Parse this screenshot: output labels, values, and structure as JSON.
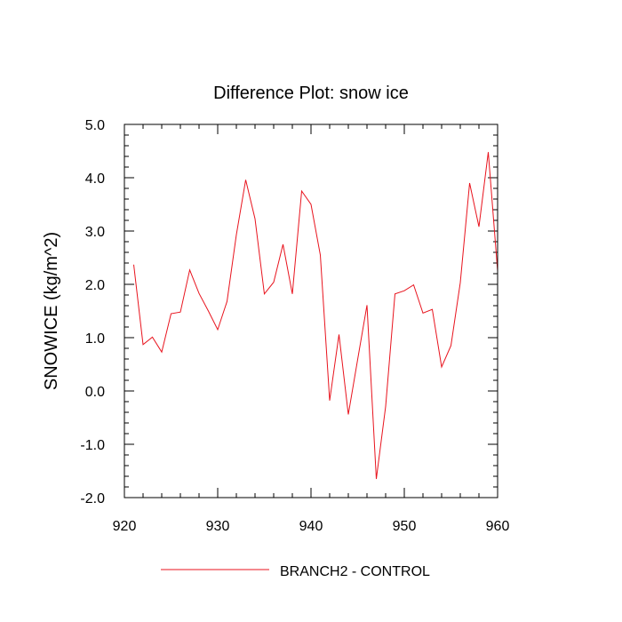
{
  "chart_data": {
    "type": "line",
    "title": "Difference Plot: snow ice",
    "xlabel": "",
    "ylabel": "SNOWICE  (kg/m^2)",
    "xlim": [
      920,
      960
    ],
    "ylim": [
      -2.0,
      5.0
    ],
    "x_ticks": [
      920,
      930,
      940,
      950,
      960
    ],
    "x_tick_labels": [
      "920",
      "930",
      "940",
      "950",
      "960"
    ],
    "y_ticks": [
      -2.0,
      -1.0,
      0.0,
      1.0,
      2.0,
      3.0,
      4.0,
      5.0
    ],
    "y_tick_labels": [
      "-2.0",
      "-1.0",
      "0.0",
      "1.0",
      "2.0",
      "3.0",
      "4.0",
      "5.0"
    ],
    "grid": false,
    "legend_position": "bottom",
    "series": [
      {
        "name": "BRANCH2 - CONTROL",
        "color": "#e8131d",
        "x": [
          921,
          922,
          923,
          924,
          925,
          926,
          927,
          928,
          929,
          930,
          931,
          932,
          933,
          934,
          935,
          936,
          937,
          938,
          939,
          940,
          941,
          942,
          943,
          944,
          945,
          946,
          947,
          948,
          949,
          950,
          951,
          952,
          953,
          954,
          955,
          956,
          957,
          958,
          959,
          960
        ],
        "y": [
          2.37,
          0.87,
          1.01,
          0.73,
          1.45,
          1.48,
          2.27,
          1.83,
          1.5,
          1.15,
          1.68,
          2.93,
          3.96,
          3.23,
          1.82,
          2.04,
          2.75,
          1.82,
          3.75,
          3.5,
          2.55,
          -0.18,
          1.06,
          -0.44,
          0.59,
          1.61,
          -1.65,
          -0.29,
          1.82,
          1.88,
          1.99,
          1.46,
          1.53,
          0.45,
          0.85,
          2.03,
          3.9,
          3.08,
          4.48,
          2.25
        ]
      }
    ]
  }
}
